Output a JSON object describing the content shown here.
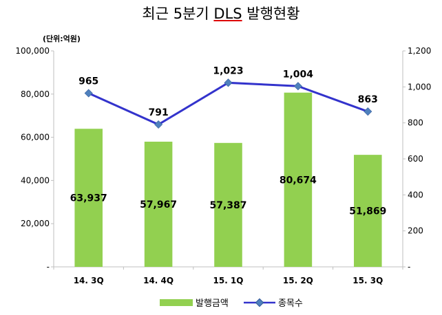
{
  "chart_data": {
    "type": "bar",
    "title_parts": [
      "최근  5분기 ",
      "DLS",
      " 발행현황"
    ],
    "unit_label": "(단위:억원)",
    "categories": [
      "14. 3Q",
      "14. 4Q",
      "15. 1Q",
      "15. 2Q",
      "15. 3Q"
    ],
    "series": [
      {
        "name": "발행금액",
        "type": "bar",
        "axis": "left",
        "color": "#92d050",
        "values": [
          63937,
          57967,
          57387,
          80674,
          51869
        ],
        "labels": [
          "63,937",
          "57,967",
          "57,387",
          "80,674",
          "51,869"
        ]
      },
      {
        "name": "종목수",
        "type": "line",
        "axis": "right",
        "color": "#3333cc",
        "values": [
          965,
          791,
          1023,
          1004,
          863
        ],
        "labels": [
          "965",
          "791",
          "1,023",
          "1,004",
          "863"
        ]
      }
    ],
    "y_left": {
      "min": 0,
      "max": 100000,
      "ticks": [
        0,
        20000,
        40000,
        60000,
        80000,
        100000
      ],
      "tick_labels": [
        "-",
        "20,000",
        "40,000",
        "60,000",
        "80,000",
        "100,000"
      ]
    },
    "y_right": {
      "min": 0,
      "max": 1200,
      "ticks": [
        0,
        200,
        400,
        600,
        800,
        1000,
        1200
      ],
      "tick_labels": [
        "-",
        "200",
        "400",
        "600",
        "800",
        "1,000",
        "1,200"
      ]
    },
    "grid": false,
    "legend_position": "bottom"
  }
}
